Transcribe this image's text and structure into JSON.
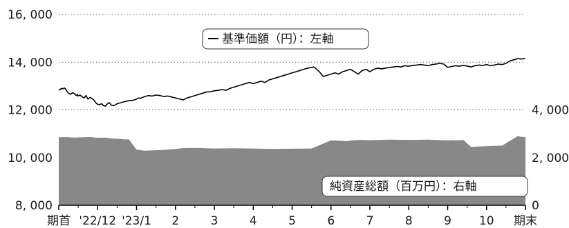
{
  "chart_data": {
    "type": "line",
    "title": "",
    "categories": [
      "期首",
      "'22/12",
      "'23/1",
      "2",
      "3",
      "4",
      "5",
      "6",
      "7",
      "8",
      "9",
      "10",
      "期末"
    ],
    "left_axis": {
      "min": 8000,
      "max": 16000,
      "ticks": [
        8000,
        10000,
        12000,
        14000,
        16000
      ],
      "tick_labels": [
        "8, 000",
        "10, 000",
        "12, 000",
        "14, 000",
        "16, 000"
      ]
    },
    "right_axis": {
      "min": 0,
      "max": 8000,
      "ticks": [
        0,
        2000,
        4000
      ],
      "tick_labels": [
        "0",
        "2, 000",
        "4, 000"
      ]
    },
    "grid": "horizontal dotted",
    "series": [
      {
        "name": "基準価額（円）：左軸",
        "axis": "left",
        "type": "line",
        "color": "#000000",
        "x": [
          0,
          0.03,
          0.07,
          0.1,
          0.14,
          0.18,
          0.2,
          0.25,
          0.3,
          0.35,
          0.4,
          0.45,
          0.48,
          0.5,
          0.55,
          0.6,
          0.65,
          0.7,
          0.75,
          0.8,
          0.85,
          0.9,
          0.95,
          1.0,
          1.05,
          1.1,
          1.15,
          1.2,
          1.25,
          1.3,
          1.35,
          1.4,
          1.45,
          1.5,
          1.6,
          1.7,
          1.8,
          1.9,
          2.0,
          2.05,
          2.1,
          2.15,
          2.2,
          2.3,
          2.4,
          2.5,
          2.6,
          2.7,
          2.8,
          2.9,
          3.0,
          3.05,
          3.1,
          3.2,
          3.3,
          3.4,
          3.5,
          3.6,
          3.7,
          3.8,
          3.9,
          4.0,
          4.1,
          4.2,
          4.3,
          4.4,
          4.5,
          4.6,
          4.7,
          4.8,
          4.9,
          5.0,
          5.1,
          5.2,
          5.3,
          5.4,
          5.5,
          5.6,
          5.7,
          5.8,
          5.9,
          6.0,
          6.1,
          6.2,
          6.3,
          6.4,
          6.5,
          6.55,
          6.6,
          6.7,
          6.8,
          6.9,
          7.0,
          7.1,
          7.2,
          7.3,
          7.4,
          7.5,
          7.6,
          7.7,
          7.8,
          7.9,
          8.0,
          8.1,
          8.2,
          8.3,
          8.4,
          8.5,
          8.6,
          8.7,
          8.8,
          8.9,
          9.0,
          9.1,
          9.2,
          9.3,
          9.4,
          9.5,
          9.6,
          9.7,
          9.8,
          9.9,
          10.0,
          10.1,
          10.2,
          10.3,
          10.4,
          10.5,
          10.6,
          10.7,
          10.8,
          10.9,
          11.0,
          11.1,
          11.2,
          11.3,
          11.4,
          11.5,
          11.6,
          11.7,
          11.8,
          11.9,
          12.0
        ],
        "values": [
          12820,
          12850,
          12900,
          12880,
          12920,
          12870,
          12800,
          12700,
          12650,
          12720,
          12680,
          12600,
          12640,
          12580,
          12620,
          12550,
          12500,
          12600,
          12450,
          12520,
          12480,
          12420,
          12300,
          12230,
          12220,
          12260,
          12180,
          12150,
          12250,
          12300,
          12200,
          12180,
          12200,
          12260,
          12300,
          12350,
          12380,
          12400,
          12450,
          12500,
          12480,
          12520,
          12550,
          12600,
          12580,
          12620,
          12600,
          12560,
          12580,
          12540,
          12500,
          12480,
          12460,
          12420,
          12500,
          12550,
          12600,
          12650,
          12700,
          12750,
          12760,
          12800,
          12820,
          12850,
          12820,
          12900,
          12950,
          13000,
          13050,
          13100,
          13150,
          13100,
          13150,
          13200,
          13150,
          13250,
          13300,
          13350,
          13400,
          13450,
          13500,
          13550,
          13600,
          13650,
          13700,
          13750,
          13780,
          13800,
          13750,
          13600,
          13400,
          13450,
          13500,
          13550,
          13500,
          13600,
          13650,
          13700,
          13600,
          13500,
          13650,
          13700,
          13600,
          13700,
          13750,
          13720,
          13750,
          13780,
          13800,
          13820,
          13800,
          13850,
          13830,
          13860,
          13880,
          13900,
          13880,
          13850,
          13900,
          13920,
          13950,
          13920,
          13780,
          13820,
          13850,
          13830,
          13860,
          13840,
          13800,
          13850,
          13880,
          13860,
          13900,
          13850,
          13880,
          13920,
          13900,
          13950,
          14050,
          14100,
          14150,
          14130,
          14150
        ]
      },
      {
        "name": "純資産総額（百万円）：右軸",
        "axis": "right",
        "type": "area",
        "color": "#888888",
        "x": [
          0,
          0.2,
          0.4,
          0.6,
          0.8,
          1.0,
          1.2,
          1.4,
          1.6,
          1.7,
          1.75,
          1.8,
          2.0,
          2.2,
          2.4,
          2.6,
          2.8,
          3.0,
          3.05,
          3.1,
          3.15,
          3.3,
          3.6,
          4.0,
          4.5,
          5.0,
          5.5,
          6.0,
          6.5,
          7.0,
          7.3,
          7.4,
          7.45,
          7.5,
          7.6,
          7.8,
          8.0,
          8.5,
          9.0,
          9.5,
          10.0,
          10.1,
          10.2,
          10.3,
          10.4,
          10.6,
          11.0,
          11.4,
          11.8,
          11.85,
          11.9,
          12.0
        ],
        "values": [
          2850,
          2860,
          2840,
          2850,
          2860,
          2830,
          2840,
          2800,
          2780,
          2760,
          2760,
          2770,
          2330,
          2290,
          2300,
          2320,
          2330,
          2360,
          2370,
          2380,
          2390,
          2400,
          2400,
          2380,
          2390,
          2380,
          2360,
          2370,
          2380,
          2720,
          2700,
          2690,
          2700,
          2710,
          2730,
          2740,
          2730,
          2750,
          2740,
          2750,
          2720,
          2730,
          2720,
          2730,
          2740,
          2450,
          2480,
          2500,
          2900,
          2880,
          2870,
          2850
        ]
      }
    ]
  }
}
